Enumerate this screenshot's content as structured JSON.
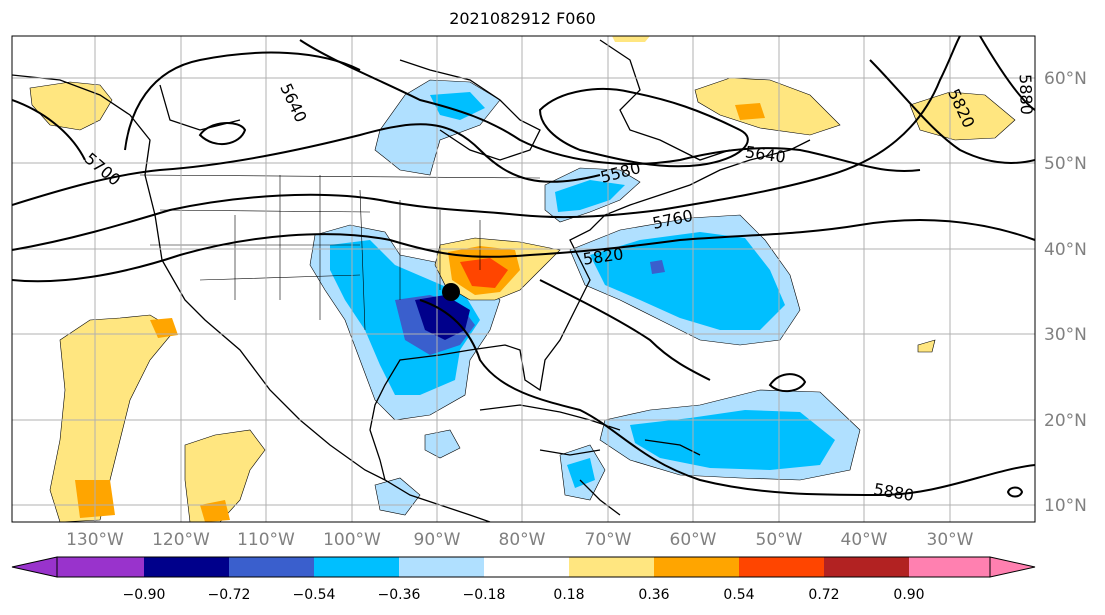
{
  "title": "2021082912 F060",
  "longitude_labels": [
    "130°W",
    "120°W",
    "110°W",
    "100°W",
    "90°W",
    "80°W",
    "70°W",
    "60°W",
    "50°W",
    "40°W",
    "30°W"
  ],
  "latitude_labels": [
    "60°N",
    "50°N",
    "40°N",
    "30°N",
    "20°N",
    "10°N"
  ],
  "contour_labels": [
    "5640",
    "5700",
    "5580",
    "5640",
    "5760",
    "5820",
    "5820",
    "5880",
    "5880"
  ],
  "colorbar": {
    "colors": [
      "#9933cc",
      "#00008b",
      "#3a5fcd",
      "#00bfff",
      "#b0e0ff",
      "#ffffff",
      "#ffe680",
      "#ffa500",
      "#ff4500",
      "#b22222",
      "#ff80b0"
    ],
    "tick_labels": [
      "−0.90",
      "−0.72",
      "−0.54",
      "−0.36",
      "−0.18",
      "0.18",
      "0.36",
      "0.54",
      "0.72",
      "0.90"
    ]
  },
  "marker_color": "#000000"
}
